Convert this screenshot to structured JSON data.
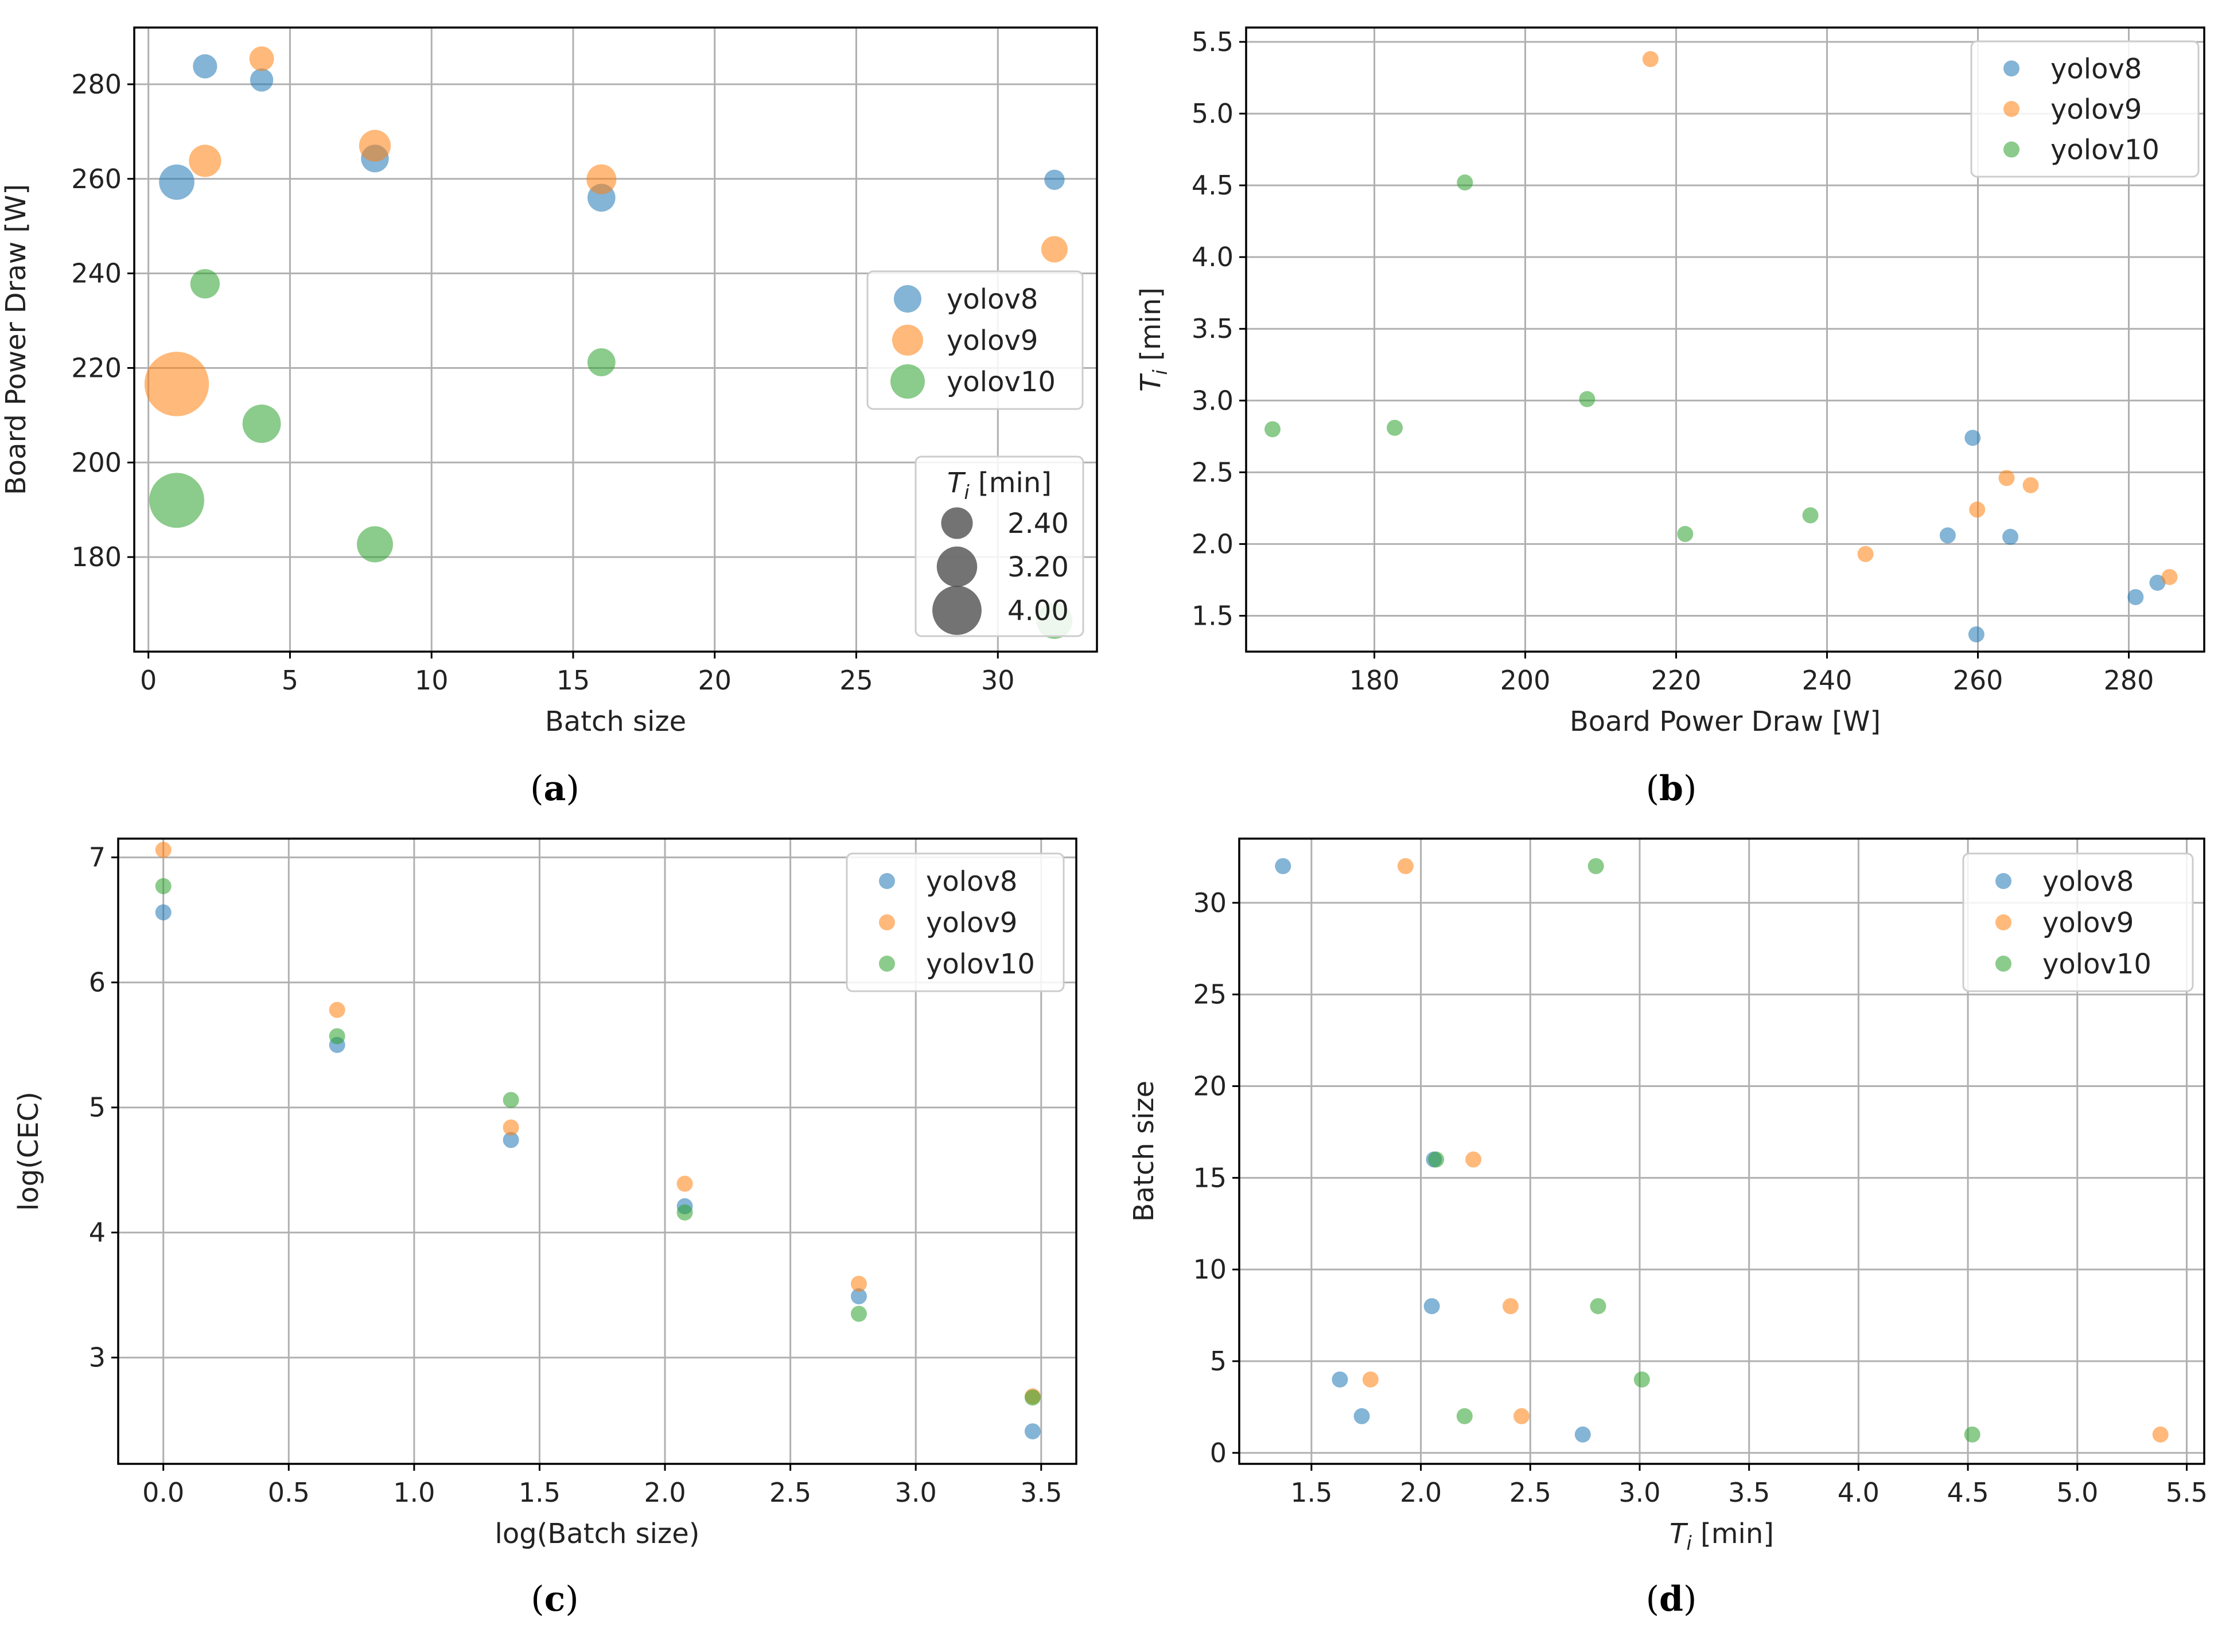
{
  "colors": {
    "yolov8": "#1f77b4",
    "yolov9": "#ff7f0e",
    "yolov10": "#2ca02c",
    "grid": "#b0b0b0",
    "size_legend": "#444444"
  },
  "chart_data": [
    {
      "id": "a",
      "caption_letter": "a",
      "type": "scatter",
      "xlabel": "Batch size",
      "ylabel": "Board Power Draw [W]",
      "xlim": [
        -0.5,
        33.5
      ],
      "ylim": [
        160,
        292
      ],
      "xticks": [
        0,
        5,
        10,
        15,
        20,
        25,
        30
      ],
      "yticks": [
        180,
        200,
        220,
        240,
        260,
        280
      ],
      "size_encoding": "T_i [min]",
      "size_legend": {
        "title_var": "T",
        "title_sub": "i",
        "title_unit": "[min]",
        "values": [
          2.4,
          3.2,
          4.0
        ],
        "labels": [
          "2.40",
          "3.20",
          "4.00"
        ]
      },
      "legend_position": "center-right",
      "series": [
        {
          "name": "yolov8",
          "x": [
            1,
            2,
            4,
            8,
            16,
            32
          ],
          "y": [
            259.3,
            283.8,
            280.9,
            264.3,
            256.0,
            259.8
          ],
          "size": [
            2.74,
            1.73,
            1.63,
            2.05,
            2.06,
            1.37
          ]
        },
        {
          "name": "yolov9",
          "x": [
            1,
            2,
            4,
            8,
            16,
            32
          ],
          "y": [
            216.6,
            263.8,
            285.4,
            267.0,
            259.9,
            245.1
          ],
          "size": [
            5.38,
            2.46,
            1.77,
            2.41,
            2.24,
            1.93
          ]
        },
        {
          "name": "yolov10",
          "x": [
            1,
            2,
            4,
            8,
            16,
            32
          ],
          "y": [
            192.0,
            237.8,
            208.2,
            182.7,
            221.2,
            166.5
          ],
          "size": [
            4.52,
            2.2,
            3.01,
            2.81,
            2.07,
            2.8
          ]
        }
      ]
    },
    {
      "id": "b",
      "caption_letter": "b",
      "type": "scatter",
      "xlabel": "Board Power Draw [W]",
      "ylabel_var": "T",
      "ylabel_sub": "i",
      "ylabel_unit": " [min]",
      "xlim": [
        163,
        290
      ],
      "ylim": [
        1.25,
        5.6
      ],
      "xticks": [
        180,
        200,
        220,
        240,
        260,
        280
      ],
      "yticks": [
        1.5,
        2.0,
        2.5,
        3.0,
        3.5,
        4.0,
        4.5,
        5.0,
        5.5
      ],
      "ytick_labels": [
        "1.5",
        "2.0",
        "2.5",
        "3.0",
        "3.5",
        "4.0",
        "4.5",
        "5.0",
        "5.5"
      ],
      "legend_position": "top-right",
      "series": [
        {
          "name": "yolov8",
          "x": [
            259.3,
            283.8,
            280.9,
            264.3,
            256.0,
            259.8
          ],
          "y": [
            2.74,
            1.73,
            1.63,
            2.05,
            2.06,
            1.37
          ]
        },
        {
          "name": "yolov9",
          "x": [
            216.6,
            263.8,
            285.4,
            267.0,
            259.9,
            245.1
          ],
          "y": [
            5.38,
            2.46,
            1.77,
            2.41,
            2.24,
            1.93
          ]
        },
        {
          "name": "yolov10",
          "x": [
            192.0,
            237.8,
            208.2,
            182.7,
            221.2,
            166.5
          ],
          "y": [
            4.52,
            2.2,
            3.01,
            2.81,
            2.07,
            2.8
          ]
        }
      ]
    },
    {
      "id": "c",
      "caption_letter": "c",
      "type": "scatter",
      "xlabel": "log(Batch size)",
      "ylabel": "log(CEC)",
      "xlim": [
        -0.18,
        3.64
      ],
      "ylim": [
        2.15,
        7.15
      ],
      "xticks": [
        0,
        0.5,
        1.0,
        1.5,
        2.0,
        2.5,
        3.0,
        3.5
      ],
      "xtick_labels": [
        "0.0",
        "0.5",
        "1.0",
        "1.5",
        "2.0",
        "2.5",
        "3.0",
        "3.5"
      ],
      "yticks": [
        3,
        4,
        5,
        6,
        7
      ],
      "legend_position": "top-right",
      "series": [
        {
          "name": "yolov8",
          "x": [
            0,
            0.693,
            1.386,
            2.079,
            2.773,
            3.466
          ],
          "y": [
            6.56,
            5.5,
            4.74,
            4.21,
            3.49,
            2.41
          ]
        },
        {
          "name": "yolov9",
          "x": [
            0,
            0.693,
            1.386,
            2.079,
            2.773,
            3.466
          ],
          "y": [
            7.06,
            5.78,
            4.84,
            4.39,
            3.59,
            2.69
          ]
        },
        {
          "name": "yolov10",
          "x": [
            0,
            0.693,
            1.386,
            2.079,
            2.773,
            3.466
          ],
          "y": [
            6.77,
            5.57,
            5.06,
            4.16,
            3.35,
            2.68
          ]
        }
      ]
    },
    {
      "id": "d",
      "caption_letter": "d",
      "type": "scatter",
      "xlabel_var": "T",
      "xlabel_sub": "i",
      "xlabel_unit": " [min]",
      "ylabel": "Batch size",
      "xlim": [
        1.17,
        5.58
      ],
      "ylim": [
        -0.6,
        33.5
      ],
      "xticks": [
        1.5,
        2.0,
        2.5,
        3.0,
        3.5,
        4.0,
        4.5,
        5.0,
        5.5
      ],
      "xtick_labels": [
        "1.5",
        "2.0",
        "2.5",
        "3.0",
        "3.5",
        "4.0",
        "4.5",
        "5.0",
        "5.5"
      ],
      "yticks": [
        0,
        5,
        10,
        15,
        20,
        25,
        30
      ],
      "legend_position": "top-right",
      "series": [
        {
          "name": "yolov8",
          "x": [
            2.74,
            1.73,
            1.63,
            2.05,
            2.06,
            1.37
          ],
          "y": [
            1,
            2,
            4,
            8,
            16,
            32
          ]
        },
        {
          "name": "yolov9",
          "x": [
            5.38,
            2.46,
            1.77,
            2.41,
            2.24,
            1.93
          ],
          "y": [
            1,
            2,
            4,
            8,
            16,
            32
          ]
        },
        {
          "name": "yolov10",
          "x": [
            4.52,
            2.2,
            3.01,
            2.81,
            2.07,
            2.8
          ],
          "y": [
            1,
            2,
            4,
            8,
            16,
            32
          ]
        }
      ]
    }
  ]
}
